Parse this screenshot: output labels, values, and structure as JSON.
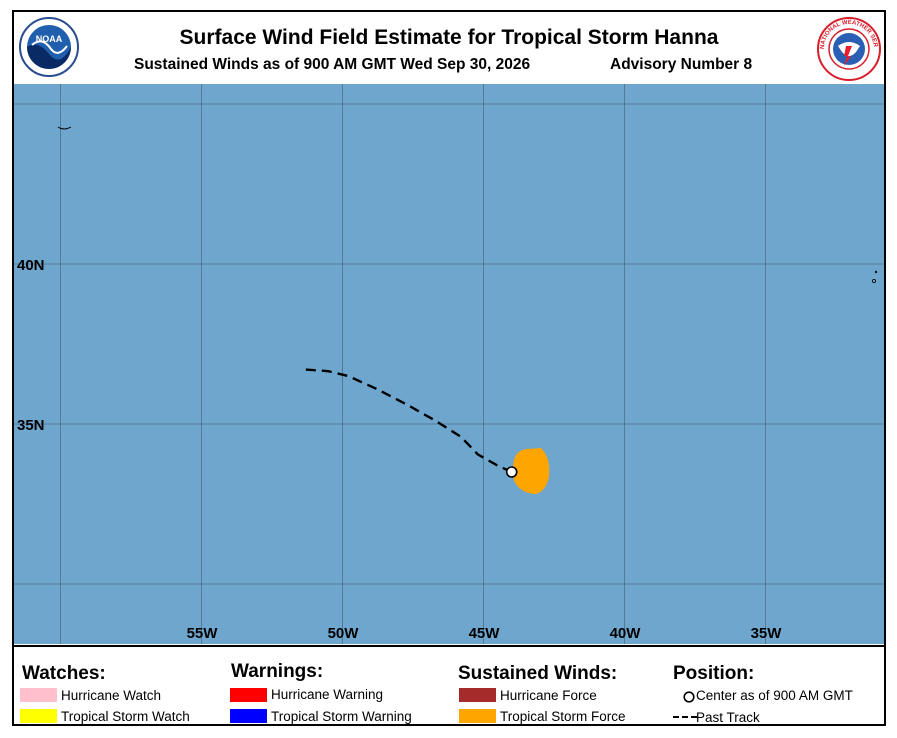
{
  "header": {
    "title": "Surface Wind Field Estimate for Tropical Storm Hanna",
    "subtitle": "Sustained Winds as of 900 AM GMT Wed Sep 30, 2026",
    "advisory": "Advisory Number 8",
    "left_logo": {
      "icon": "noaa-logo-icon",
      "text": "NOAA"
    },
    "right_logo": {
      "icon": "nws-logo-icon",
      "text": "NATIONAL WEATHER SERVICE"
    }
  },
  "map": {
    "ocean_color": "#6fa6ce",
    "grid_color": "#4d6e86",
    "lat_labels": [
      "40N",
      "35N"
    ],
    "lon_labels": [
      "55W",
      "50W",
      "45W",
      "40W",
      "35W"
    ],
    "track_color": "#000000",
    "wind_field_color": "#ffa500",
    "past_track_lonlat": [
      [
        -51.3,
        36.7
      ],
      [
        -50.5,
        36.65
      ],
      [
        -49.8,
        36.5
      ],
      [
        -48.8,
        36.1
      ],
      [
        -47.7,
        35.6
      ],
      [
        -46.7,
        35.1
      ],
      [
        -45.8,
        34.6
      ],
      [
        -45.2,
        34.05
      ],
      [
        -44.5,
        33.7
      ],
      [
        -44.0,
        33.5
      ]
    ],
    "center_lonlat": [
      -44.0,
      33.5
    ]
  },
  "legend": {
    "watches": {
      "heading": "Watches:",
      "items": [
        {
          "label": "Hurricane Watch",
          "color": "#ffc0cb"
        },
        {
          "label": "Tropical Storm Watch",
          "color": "#ffff00"
        }
      ]
    },
    "warnings": {
      "heading": "Warnings:",
      "items": [
        {
          "label": "Hurricane Warning",
          "color": "#ff0000"
        },
        {
          "label": "Tropical Storm Warning",
          "color": "#0000ff"
        }
      ]
    },
    "winds": {
      "heading": "Sustained Winds:",
      "items": [
        {
          "label": "Hurricane Force",
          "color": "#a52a2a"
        },
        {
          "label": "Tropical Storm Force",
          "color": "#ffa500"
        }
      ]
    },
    "position": {
      "heading": "Position:",
      "center_label": "Center as of 900 AM GMT",
      "track_label": "Past Track"
    }
  }
}
